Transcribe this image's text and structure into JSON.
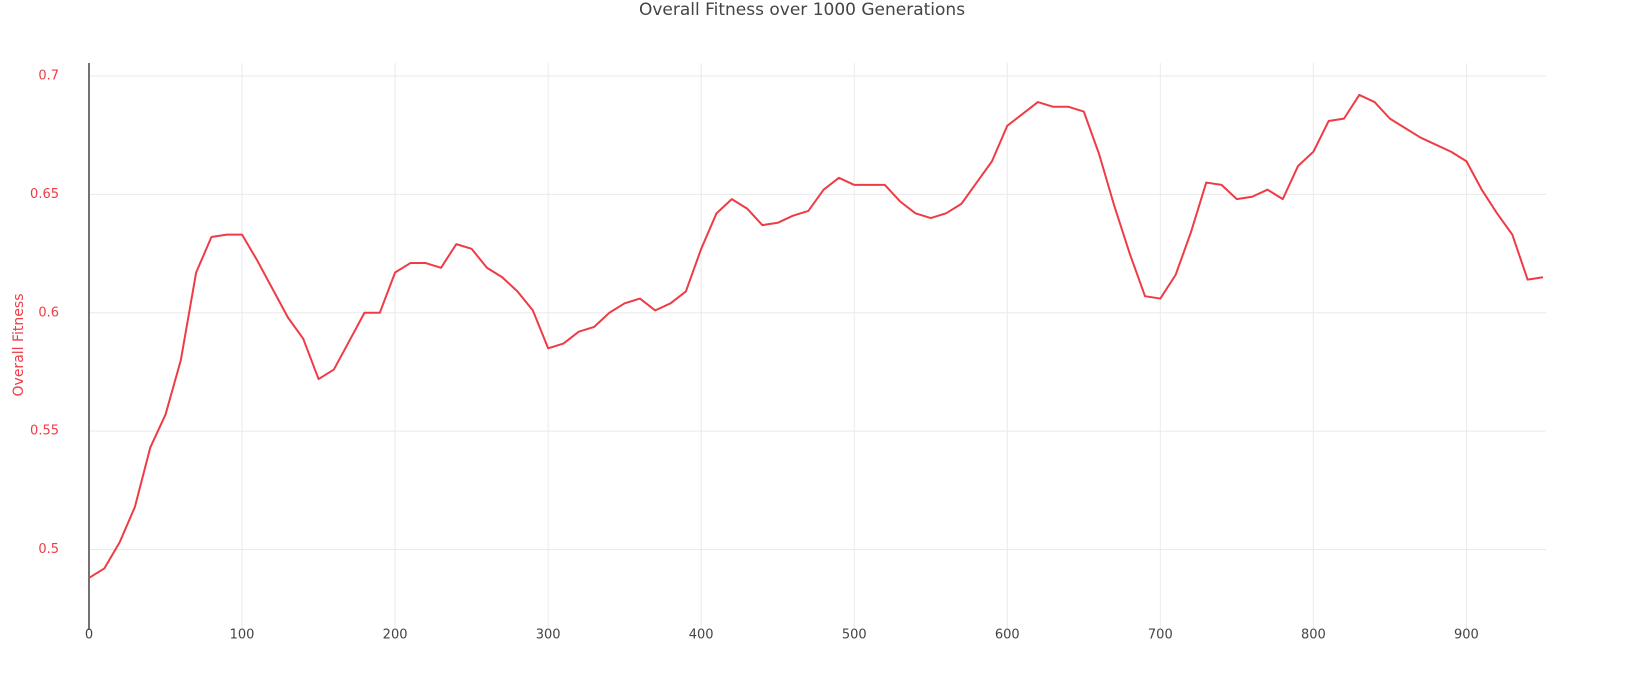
{
  "chart_data": {
    "type": "line",
    "title": "Overall Fitness over 1000 Generations",
    "y_label": "Overall Fitness",
    "x": [
      0,
      10,
      20,
      30,
      40,
      50,
      60,
      70,
      80,
      90,
      100,
      110,
      120,
      130,
      140,
      150,
      160,
      170,
      180,
      190,
      200,
      210,
      220,
      230,
      240,
      250,
      260,
      270,
      280,
      290,
      300,
      310,
      320,
      330,
      340,
      350,
      360,
      370,
      380,
      390,
      400,
      410,
      420,
      430,
      440,
      450,
      460,
      470,
      480,
      490,
      500,
      510,
      520,
      530,
      540,
      550,
      560,
      570,
      580,
      590,
      600,
      610,
      620,
      630,
      640,
      650,
      660,
      670,
      680,
      690,
      700,
      710,
      720,
      730,
      740,
      750,
      760,
      770,
      780,
      790,
      800,
      810,
      820,
      830,
      840,
      850,
      860,
      870,
      880,
      890,
      900,
      910,
      920,
      930,
      940,
      950
    ],
    "series": [
      {
        "name": "Overall Fitness",
        "color": "#ef3b45",
        "values": [
          0.488,
          0.492,
          0.503,
          0.518,
          0.543,
          0.557,
          0.58,
          0.617,
          0.632,
          0.633,
          0.633,
          0.622,
          0.61,
          0.598,
          0.589,
          0.572,
          0.576,
          0.588,
          0.6,
          0.6,
          0.617,
          0.621,
          0.621,
          0.619,
          0.629,
          0.627,
          0.619,
          0.615,
          0.609,
          0.601,
          0.585,
          0.587,
          0.592,
          0.594,
          0.6,
          0.604,
          0.606,
          0.601,
          0.604,
          0.609,
          0.627,
          0.642,
          0.648,
          0.644,
          0.637,
          0.638,
          0.641,
          0.643,
          0.652,
          0.657,
          0.654,
          0.654,
          0.654,
          0.647,
          0.642,
          0.64,
          0.642,
          0.646,
          0.655,
          0.664,
          0.679,
          0.684,
          0.689,
          0.687,
          0.687,
          0.685,
          0.667,
          0.645,
          0.625,
          0.607,
          0.606,
          0.616,
          0.634,
          0.655,
          0.654,
          0.648,
          0.649,
          0.652,
          0.648,
          0.662,
          0.668,
          0.681,
          0.682,
          0.692,
          0.689,
          0.682,
          0.678,
          0.674,
          0.671,
          0.668,
          0.664,
          0.652,
          0.642,
          0.633,
          0.614,
          0.615
        ]
      }
    ],
    "xlim": [
      0,
      952
    ],
    "ylim": [
      0.466,
      0.7055
    ],
    "xticks": [
      0,
      100,
      200,
      300,
      400,
      500,
      600,
      700,
      800,
      900
    ],
    "yticks": [
      0.5,
      0.55,
      0.6,
      0.65,
      0.7
    ],
    "grid": true,
    "y_tick_color": "#ef3b45",
    "x_tick_color": "#444444"
  }
}
